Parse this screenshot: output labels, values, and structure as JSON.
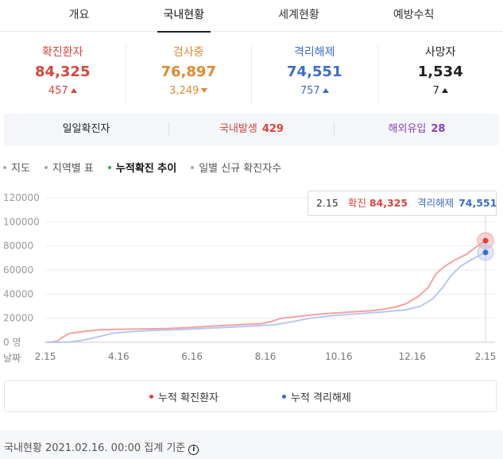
{
  "tabs": [
    {
      "label": "개요",
      "active": false
    },
    {
      "label": "국내현황",
      "active": true
    },
    {
      "label": "세계현황",
      "active": false
    },
    {
      "label": "예방수칙",
      "active": false
    }
  ],
  "stats": [
    {
      "label": "확진환자",
      "value": "84,325",
      "delta": "457",
      "direction": "up",
      "color": "#d9453b"
    },
    {
      "label": "검사중",
      "value": "76,897",
      "delta": "3,249",
      "direction": "down",
      "color": "#e08a2e"
    },
    {
      "label": "격리해제",
      "value": "74,551",
      "delta": "757",
      "direction": "up",
      "color": "#3e6ccf"
    },
    {
      "label": "사망자",
      "value": "1,534",
      "delta": "7",
      "direction": "up",
      "color": "#222222"
    }
  ],
  "daily": {
    "title": "일일확진자",
    "domestic_label": "국내발생",
    "domestic_value": "429",
    "overseas_label": "해외유입",
    "overseas_value": "28",
    "domestic_color": "#d9453b",
    "overseas_color": "#8a3fbf"
  },
  "subtabs": [
    {
      "label": "지도",
      "active": false
    },
    {
      "label": "지역별 표",
      "active": false
    },
    {
      "label": "누적확진 추이",
      "active": true
    },
    {
      "label": "일별 신규 확진자수",
      "active": false
    }
  ],
  "tooltip": {
    "date": "2.15",
    "confirmed_label": "확진",
    "confirmed_value": "84,325",
    "released_label": "격리해제",
    "released_value": "74,551"
  },
  "chart_data": {
    "type": "line",
    "x_label": "날짜",
    "y_unit": "명",
    "y_ticks": [
      0,
      20000,
      40000,
      60000,
      80000,
      100000,
      120000
    ],
    "y_tick_labels": [
      "0 명",
      "20000",
      "40000",
      "60000",
      "80000",
      "100000",
      "120000"
    ],
    "ylim": [
      0,
      120000
    ],
    "x_ticks": [
      "2.15",
      "4.16",
      "6.16",
      "8.16",
      "10.16",
      "12.16",
      "2.15"
    ],
    "xlim_days": [
      0,
      366
    ],
    "series": [
      {
        "name": "누적 확진환자",
        "color": "#f4a3a0",
        "marker_color": "#e2403a",
        "points": [
          [
            0,
            28
          ],
          [
            4,
            30
          ],
          [
            10,
            1000
          ],
          [
            14,
            4000
          ],
          [
            20,
            7400
          ],
          [
            30,
            8800
          ],
          [
            45,
            10400
          ],
          [
            60,
            10700
          ],
          [
            80,
            11000
          ],
          [
            100,
            11400
          ],
          [
            120,
            12200
          ],
          [
            140,
            13500
          ],
          [
            160,
            14500
          ],
          [
            180,
            15500
          ],
          [
            189,
            17500
          ],
          [
            195,
            19800
          ],
          [
            210,
            21400
          ],
          [
            230,
            23600
          ],
          [
            250,
            24900
          ],
          [
            270,
            26100
          ],
          [
            280,
            27300
          ],
          [
            290,
            29000
          ],
          [
            300,
            32000
          ],
          [
            310,
            38000
          ],
          [
            318,
            45000
          ],
          [
            325,
            57000
          ],
          [
            332,
            63000
          ],
          [
            340,
            68000
          ],
          [
            350,
            73000
          ],
          [
            358,
            79000
          ],
          [
            366,
            84325
          ]
        ]
      },
      {
        "name": "누적 격리해제",
        "color": "#b9c8ef",
        "marker_color": "#3e6ccf",
        "points": [
          [
            0,
            16
          ],
          [
            10,
            20
          ],
          [
            20,
            150
          ],
          [
            30,
            1500
          ],
          [
            40,
            3500
          ],
          [
            55,
            7400
          ],
          [
            70,
            8800
          ],
          [
            90,
            9900
          ],
          [
            110,
            10500
          ],
          [
            130,
            11400
          ],
          [
            150,
            12400
          ],
          [
            170,
            13400
          ],
          [
            190,
            14500
          ],
          [
            205,
            17000
          ],
          [
            220,
            20000
          ],
          [
            240,
            22200
          ],
          [
            260,
            23700
          ],
          [
            280,
            25100
          ],
          [
            300,
            27000
          ],
          [
            312,
            30000
          ],
          [
            322,
            36000
          ],
          [
            330,
            45000
          ],
          [
            337,
            55000
          ],
          [
            345,
            63000
          ],
          [
            355,
            69000
          ],
          [
            366,
            74551
          ]
        ]
      }
    ]
  },
  "legend": [
    {
      "label": "누적 확진환자",
      "color": "#e2403a"
    },
    {
      "label": "누적 격리해제",
      "color": "#3e6ccf"
    }
  ],
  "footer": {
    "text": "국내현황 2021.02.16. 00:00 집계 기준",
    "icon": "info-icon"
  }
}
